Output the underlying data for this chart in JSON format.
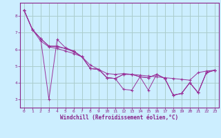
{
  "background_color": "#cceeff",
  "line_color": "#993399",
  "grid_color": "#aacccc",
  "xlabel": "Windchill (Refroidissement éolien,°C)",
  "xlabel_color": "#882288",
  "tick_color": "#882288",
  "axis_color": "#882288",
  "xlim": [
    -0.5,
    23.5
  ],
  "ylim": [
    2.5,
    8.8
  ],
  "yticks": [
    3,
    4,
    5,
    6,
    7,
    8
  ],
  "xticks": [
    0,
    1,
    2,
    3,
    4,
    5,
    6,
    7,
    8,
    9,
    10,
    11,
    12,
    13,
    14,
    15,
    16,
    17,
    18,
    19,
    20,
    21,
    22,
    23
  ],
  "series": [
    {
      "x": [
        0,
        1,
        2,
        3,
        4,
        5,
        6,
        7,
        8,
        9,
        10,
        11,
        12,
        13,
        14,
        15,
        16,
        17,
        18,
        19,
        20,
        21,
        22,
        23
      ],
      "y": [
        8.35,
        7.2,
        6.5,
        6.15,
        6.05,
        5.9,
        5.75,
        5.55,
        5.05,
        4.8,
        4.55,
        4.5,
        4.55,
        4.5,
        4.45,
        4.4,
        4.35,
        4.3,
        4.25,
        4.2,
        4.15,
        4.6,
        4.7,
        4.75
      ]
    },
    {
      "x": [
        0,
        1,
        2,
        3,
        4,
        5,
        6,
        7,
        8,
        9,
        10,
        11,
        12,
        13,
        14,
        15,
        16,
        17,
        18,
        19,
        20,
        21,
        22,
        23
      ],
      "y": [
        8.35,
        7.2,
        6.65,
        3.0,
        6.6,
        6.1,
        5.9,
        5.55,
        4.85,
        4.8,
        4.3,
        4.25,
        3.6,
        3.55,
        4.35,
        4.3,
        4.5,
        4.25,
        3.25,
        3.35,
        4.0,
        3.4,
        4.6,
        4.75
      ]
    },
    {
      "x": [
        0,
        1,
        2,
        3,
        4,
        5,
        6,
        7,
        8,
        9,
        10,
        11,
        12,
        13,
        14,
        15,
        16,
        17,
        18,
        19,
        20,
        21,
        22,
        23
      ],
      "y": [
        8.35,
        7.2,
        6.65,
        6.2,
        6.15,
        6.05,
        5.85,
        5.55,
        4.85,
        4.8,
        4.3,
        4.25,
        4.5,
        4.5,
        4.35,
        3.55,
        4.5,
        4.25,
        3.25,
        3.35,
        4.0,
        3.4,
        4.6,
        4.75
      ]
    },
    {
      "x": [
        0,
        1,
        2,
        3,
        4,
        5,
        6,
        7,
        8,
        9,
        10,
        11,
        12,
        13,
        14,
        15,
        16,
        17,
        18,
        19,
        20,
        21,
        22,
        23
      ],
      "y": [
        8.35,
        7.2,
        6.65,
        6.2,
        6.2,
        6.05,
        5.9,
        5.55,
        4.85,
        4.8,
        4.3,
        4.25,
        4.5,
        4.5,
        4.35,
        4.3,
        4.5,
        4.25,
        3.25,
        3.35,
        4.0,
        3.4,
        4.6,
        4.75
      ]
    }
  ]
}
